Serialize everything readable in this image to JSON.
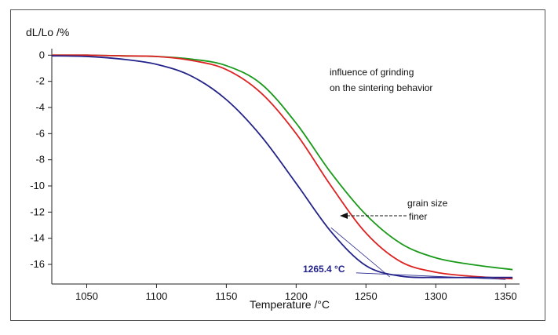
{
  "chart_data": {
    "type": "line",
    "ylabel": "dL/Lo /%",
    "xlabel": "Temperature /°C",
    "xlim": [
      1025,
      1360
    ],
    "ylim": [
      -17.5,
      0.5
    ],
    "x_ticks": [
      1050,
      1100,
      1150,
      1200,
      1250,
      1300,
      1350
    ],
    "x_tick_labels": [
      "1050",
      "1100",
      "1150",
      "1200",
      "1250",
      "1300",
      "1350"
    ],
    "y_ticks": [
      0,
      -2,
      -4,
      -6,
      -8,
      -10,
      -12,
      -14,
      -16
    ],
    "y_tick_labels": [
      "0",
      "-2",
      "-4",
      "-6",
      "-8",
      "-10",
      "-12",
      "-14",
      "-16"
    ],
    "grid": false,
    "series": [
      {
        "color": "#1a9a1a",
        "x": [
          1025,
          1050,
          1075,
          1100,
          1125,
          1150,
          1175,
          1200,
          1225,
          1250,
          1275,
          1300,
          1325,
          1355
        ],
        "y": [
          0.0,
          0.0,
          -0.05,
          -0.1,
          -0.3,
          -0.8,
          -2.2,
          -5.2,
          -9.0,
          -12.2,
          -14.4,
          -15.5,
          -16.0,
          -16.4
        ]
      },
      {
        "color": "#dd2222",
        "x": [
          1025,
          1050,
          1075,
          1100,
          1125,
          1150,
          1175,
          1200,
          1225,
          1250,
          1275,
          1300,
          1325,
          1355
        ],
        "y": [
          0.0,
          0.0,
          -0.05,
          -0.1,
          -0.4,
          -1.1,
          -2.9,
          -6.0,
          -10.0,
          -13.6,
          -15.8,
          -16.6,
          -16.9,
          -17.1
        ]
      },
      {
        "color": "#22228a",
        "x": [
          1025,
          1050,
          1075,
          1100,
          1125,
          1150,
          1175,
          1200,
          1225,
          1250,
          1275,
          1300,
          1325,
          1355
        ],
        "y": [
          -0.05,
          -0.1,
          -0.3,
          -0.7,
          -1.6,
          -3.4,
          -6.2,
          -9.8,
          -13.5,
          -16.1,
          -16.9,
          -17.0,
          -17.0,
          -17.0
        ]
      }
    ],
    "annotations": {
      "title_line1": "influence of grinding",
      "title_line2": "on the sintering behavior",
      "grain_line1": "grain size",
      "grain_line2": "finer",
      "onset_label": "1265.4 °C",
      "onset_value": 1265.4,
      "onset_color": "#22228a"
    }
  }
}
